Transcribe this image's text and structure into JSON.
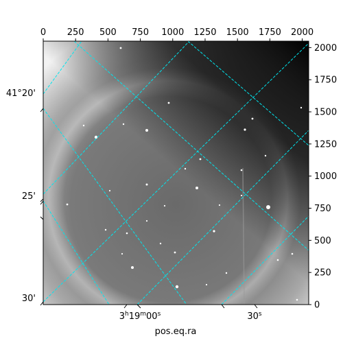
{
  "chart_data": {
    "type": "image",
    "title": "",
    "xlabel": "pos.eq.ra",
    "ylabel": "",
    "colormap": "gray",
    "pixel_axes": {
      "x_range": [
        0,
        2050
      ],
      "y_range": [
        0,
        2050
      ],
      "x_ticks": [
        0,
        250,
        500,
        750,
        1000,
        1250,
        1500,
        1750,
        2000
      ],
      "y_ticks": [
        0,
        250,
        500,
        750,
        1000,
        1250,
        1500,
        1750,
        2000
      ],
      "x_tick_labels": [
        "0",
        "250",
        "500",
        "750",
        "1000",
        "1250",
        "1500",
        "1750",
        "2000"
      ],
      "y_tick_labels": [
        "0",
        "250",
        "500",
        "750",
        "1000",
        "1250",
        "1500",
        "1750",
        "2000"
      ]
    },
    "world_axes": {
      "ra_tick_labels": [
        {
          "pre": "3",
          "h": "h",
          "mid": "19",
          "m": "m",
          "post": "00",
          "s": "s"
        },
        {
          "pre": "",
          "h": "",
          "mid": "",
          "m": "",
          "post": "30",
          "s": "s"
        }
      ],
      "dec_tick_labels": [
        "41°20'",
        "25'",
        "30'"
      ]
    },
    "grid": true,
    "grid_color": "#00e5ee",
    "image_description_colors": {
      "sky_bright": "#ffffff",
      "sky_dark": "#000000"
    }
  }
}
